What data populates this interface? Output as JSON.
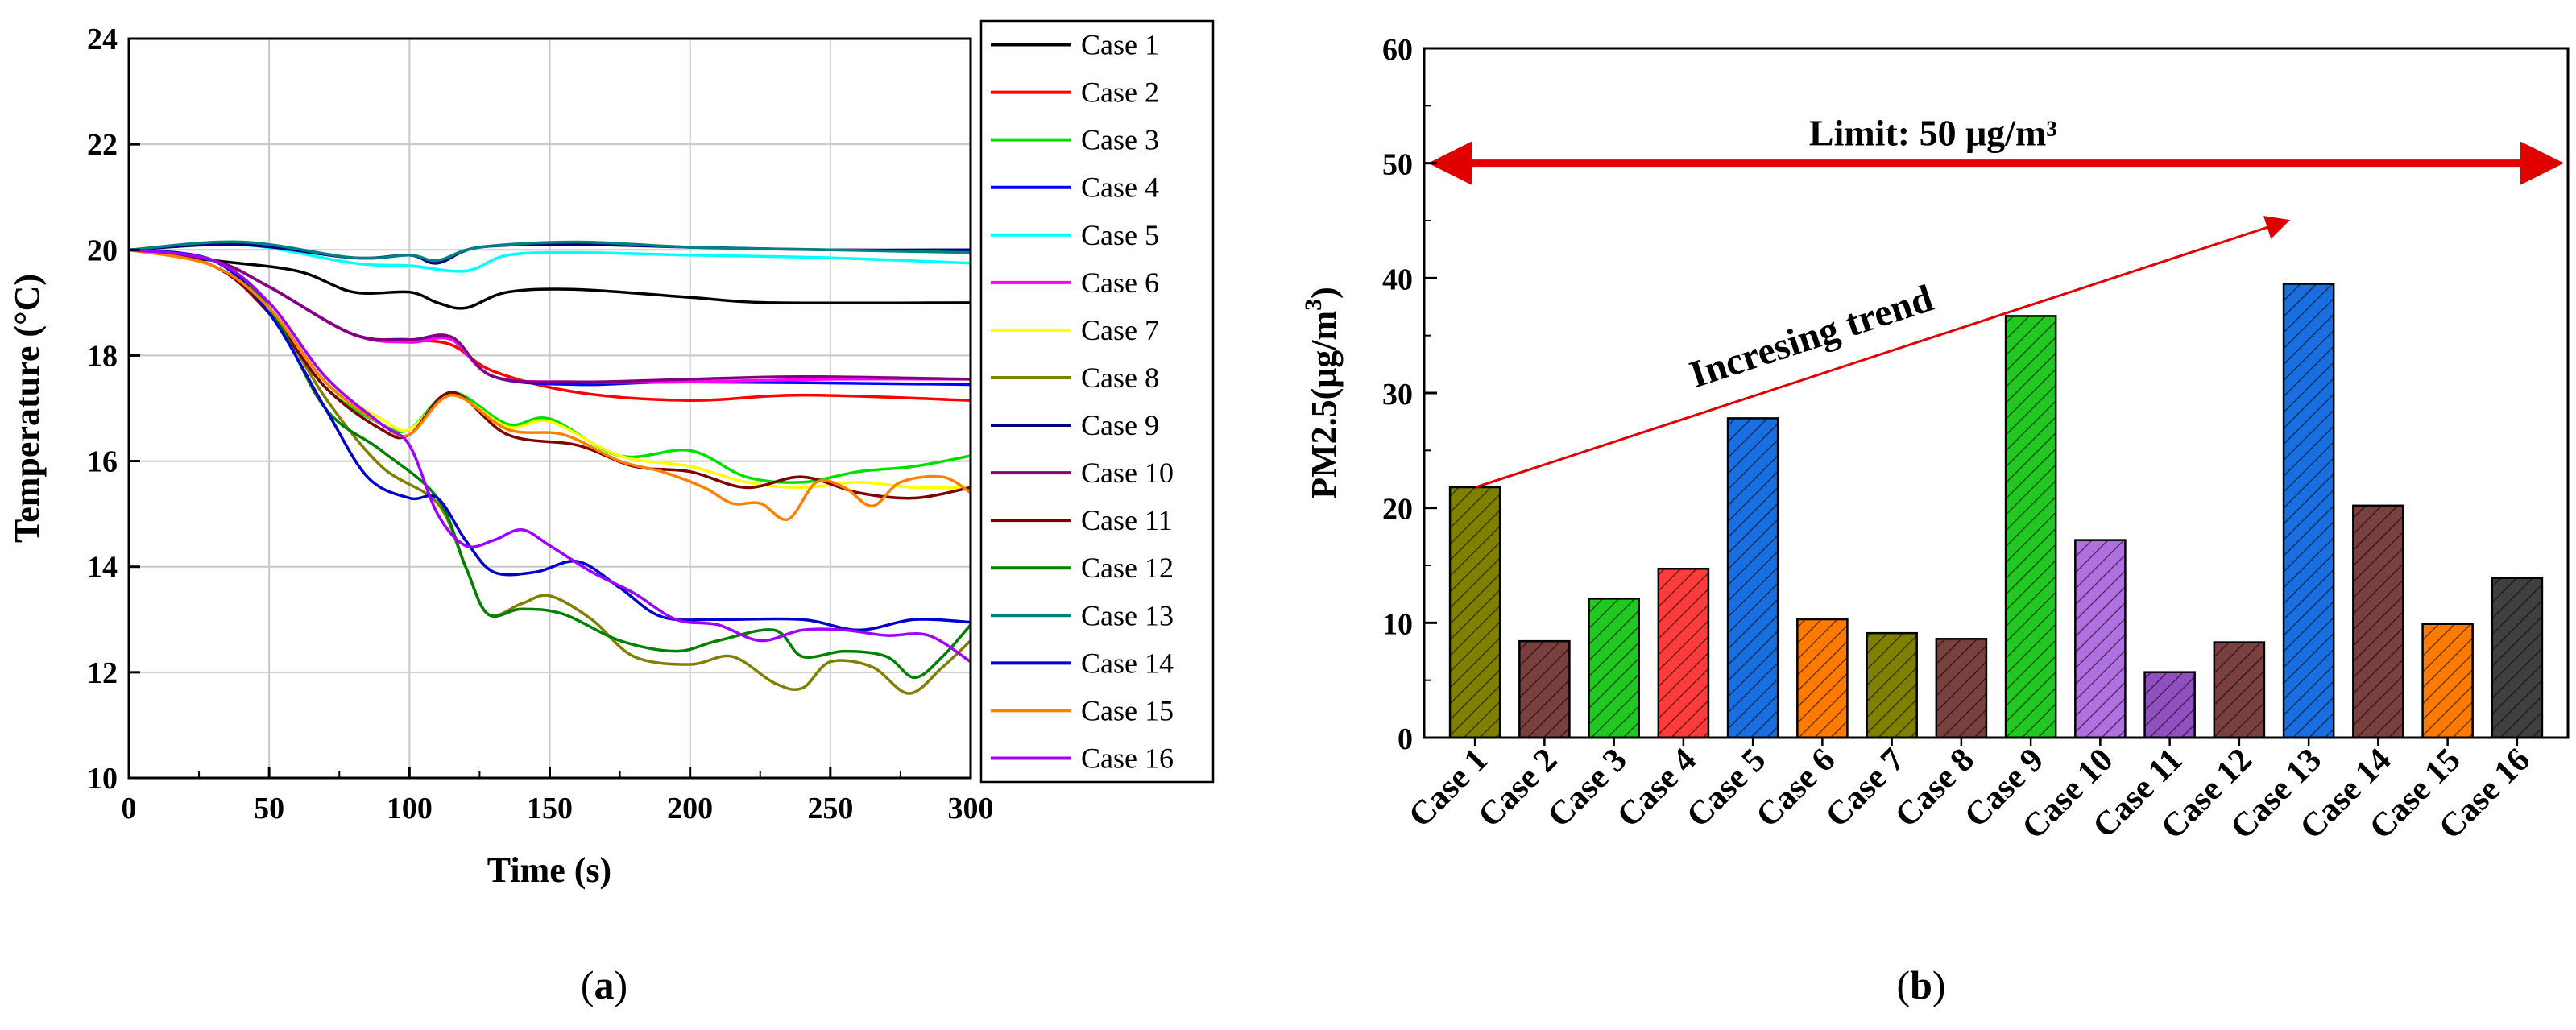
{
  "chart_data": [
    {
      "type": "line",
      "panel_label_prefix": "(",
      "panel_label_letter": "a",
      "panel_label_suffix": ")",
      "xlabel": "Time (s)",
      "ylabel": "Temperature (°C)",
      "xlim": [
        0,
        300
      ],
      "ylim": [
        10,
        24
      ],
      "xticks": [
        0,
        50,
        100,
        150,
        200,
        250,
        300
      ],
      "yticks": [
        10,
        12,
        14,
        16,
        18,
        20,
        22,
        24
      ],
      "grid": true,
      "legend_position": "outside-right",
      "series": [
        {
          "name": "Case 1",
          "color": "#000000",
          "points": [
            [
              0,
              20
            ],
            [
              30,
              19.8
            ],
            [
              60,
              19.6
            ],
            [
              80,
              19.2
            ],
            [
              100,
              19.2
            ],
            [
              110,
              19.0
            ],
            [
              120,
              18.9
            ],
            [
              135,
              19.2
            ],
            [
              160,
              19.25
            ],
            [
              200,
              19.1
            ],
            [
              230,
              19.0
            ],
            [
              300,
              19.0
            ]
          ]
        },
        {
          "name": "Case 2",
          "color": "#ff0000",
          "points": [
            [
              0,
              20
            ],
            [
              30,
              19.8
            ],
            [
              50,
              19.3
            ],
            [
              80,
              18.4
            ],
            [
              100,
              18.3
            ],
            [
              115,
              18.2
            ],
            [
              130,
              17.7
            ],
            [
              160,
              17.3
            ],
            [
              200,
              17.15
            ],
            [
              240,
              17.25
            ],
            [
              300,
              17.15
            ]
          ]
        },
        {
          "name": "Case 3",
          "color": "#00e000",
          "points": [
            [
              0,
              20
            ],
            [
              30,
              19.7
            ],
            [
              50,
              18.8
            ],
            [
              70,
              17.4
            ],
            [
              90,
              16.7
            ],
            [
              100,
              16.6
            ],
            [
              115,
              17.3
            ],
            [
              135,
              16.7
            ],
            [
              150,
              16.8
            ],
            [
              175,
              16.1
            ],
            [
              200,
              16.2
            ],
            [
              220,
              15.7
            ],
            [
              240,
              15.6
            ],
            [
              260,
              15.8
            ],
            [
              280,
              15.9
            ],
            [
              300,
              16.1
            ]
          ]
        },
        {
          "name": "Case 4",
          "color": "#0000ff",
          "points": [
            [
              0,
              20
            ],
            [
              30,
              19.8
            ],
            [
              50,
              19.3
            ],
            [
              80,
              18.4
            ],
            [
              100,
              18.3
            ],
            [
              115,
              18.3
            ],
            [
              130,
              17.6
            ],
            [
              160,
              17.45
            ],
            [
              200,
              17.5
            ],
            [
              300,
              17.45
            ]
          ]
        },
        {
          "name": "Case 5",
          "color": "#00ffff",
          "points": [
            [
              0,
              20
            ],
            [
              40,
              20.1
            ],
            [
              80,
              19.75
            ],
            [
              100,
              19.7
            ],
            [
              120,
              19.6
            ],
            [
              135,
              19.9
            ],
            [
              160,
              19.95
            ],
            [
              200,
              19.9
            ],
            [
              250,
              19.85
            ],
            [
              300,
              19.75
            ]
          ]
        },
        {
          "name": "Case 6",
          "color": "#ff00ff",
          "points": [
            [
              0,
              20
            ],
            [
              30,
              19.8
            ],
            [
              50,
              19.3
            ],
            [
              80,
              18.4
            ],
            [
              100,
              18.25
            ],
            [
              115,
              18.3
            ],
            [
              130,
              17.6
            ],
            [
              160,
              17.5
            ],
            [
              200,
              17.5
            ],
            [
              250,
              17.55
            ],
            [
              300,
              17.55
            ]
          ]
        },
        {
          "name": "Case 7",
          "color": "#ffff00",
          "points": [
            [
              0,
              20
            ],
            [
              30,
              19.7
            ],
            [
              50,
              18.9
            ],
            [
              70,
              17.5
            ],
            [
              90,
              16.8
            ],
            [
              100,
              16.6
            ],
            [
              115,
              17.25
            ],
            [
              135,
              16.65
            ],
            [
              150,
              16.75
            ],
            [
              175,
              16.1
            ],
            [
              200,
              15.9
            ],
            [
              220,
              15.6
            ],
            [
              240,
              15.5
            ],
            [
              260,
              15.6
            ],
            [
              280,
              15.5
            ],
            [
              300,
              15.5
            ]
          ]
        },
        {
          "name": "Case 8",
          "color": "#808000",
          "points": [
            [
              0,
              20
            ],
            [
              30,
              19.8
            ],
            [
              50,
              18.9
            ],
            [
              70,
              17.2
            ],
            [
              90,
              15.9
            ],
            [
              110,
              15.2
            ],
            [
              120,
              14.0
            ],
            [
              128,
              13.1
            ],
            [
              140,
              13.3
            ],
            [
              150,
              13.45
            ],
            [
              165,
              13.0
            ],
            [
              180,
              12.3
            ],
            [
              200,
              12.15
            ],
            [
              215,
              12.3
            ],
            [
              230,
              11.8
            ],
            [
              240,
              11.7
            ],
            [
              250,
              12.2
            ],
            [
              265,
              12.1
            ],
            [
              278,
              11.6
            ],
            [
              290,
              12.1
            ],
            [
              300,
              12.6
            ]
          ]
        },
        {
          "name": "Case 9",
          "color": "#000080",
          "points": [
            [
              0,
              20
            ],
            [
              40,
              20.1
            ],
            [
              80,
              19.85
            ],
            [
              100,
              19.9
            ],
            [
              110,
              19.75
            ],
            [
              125,
              20.05
            ],
            [
              160,
              20.1
            ],
            [
              200,
              20.05
            ],
            [
              250,
              20.0
            ],
            [
              300,
              20.0
            ]
          ]
        },
        {
          "name": "Case 10",
          "color": "#800080",
          "points": [
            [
              0,
              20
            ],
            [
              30,
              19.8
            ],
            [
              50,
              19.3
            ],
            [
              80,
              18.4
            ],
            [
              100,
              18.3
            ],
            [
              115,
              18.35
            ],
            [
              130,
              17.6
            ],
            [
              160,
              17.5
            ],
            [
              200,
              17.55
            ],
            [
              240,
              17.6
            ],
            [
              300,
              17.55
            ]
          ]
        },
        {
          "name": "Case 11",
          "color": "#800000",
          "points": [
            [
              0,
              20
            ],
            [
              30,
              19.7
            ],
            [
              50,
              18.8
            ],
            [
              70,
              17.4
            ],
            [
              90,
              16.6
            ],
            [
              100,
              16.5
            ],
            [
              115,
              17.3
            ],
            [
              135,
              16.5
            ],
            [
              160,
              16.3
            ],
            [
              180,
              15.9
            ],
            [
              200,
              15.8
            ],
            [
              220,
              15.5
            ],
            [
              240,
              15.7
            ],
            [
              260,
              15.4
            ],
            [
              280,
              15.3
            ],
            [
              300,
              15.5
            ]
          ]
        },
        {
          "name": "Case 12",
          "color": "#008000",
          "points": [
            [
              0,
              20
            ],
            [
              30,
              19.8
            ],
            [
              50,
              18.9
            ],
            [
              70,
              17.0
            ],
            [
              90,
              16.2
            ],
            [
              110,
              15.3
            ],
            [
              120,
              14.0
            ],
            [
              128,
              13.1
            ],
            [
              140,
              13.2
            ],
            [
              155,
              13.1
            ],
            [
              175,
              12.6
            ],
            [
              195,
              12.4
            ],
            [
              210,
              12.6
            ],
            [
              230,
              12.8
            ],
            [
              240,
              12.3
            ],
            [
              255,
              12.4
            ],
            [
              270,
              12.3
            ],
            [
              280,
              11.9
            ],
            [
              290,
              12.3
            ],
            [
              300,
              12.9
            ]
          ]
        },
        {
          "name": "Case 13",
          "color": "#008080",
          "points": [
            [
              0,
              20
            ],
            [
              40,
              20.15
            ],
            [
              80,
              19.85
            ],
            [
              100,
              19.9
            ],
            [
              110,
              19.8
            ],
            [
              125,
              20.05
            ],
            [
              160,
              20.15
            ],
            [
              200,
              20.05
            ],
            [
              250,
              20.0
            ],
            [
              300,
              19.95
            ]
          ]
        },
        {
          "name": "Case 14",
          "color": "#0000cc",
          "points": [
            [
              0,
              20
            ],
            [
              30,
              19.8
            ],
            [
              50,
              18.8
            ],
            [
              70,
              17.0
            ],
            [
              85,
              15.7
            ],
            [
              100,
              15.3
            ],
            [
              110,
              15.3
            ],
            [
              120,
              14.5
            ],
            [
              130,
              13.9
            ],
            [
              145,
              13.9
            ],
            [
              160,
              14.1
            ],
            [
              175,
              13.6
            ],
            [
              190,
              13.05
            ],
            [
              210,
              13.0
            ],
            [
              240,
              13.0
            ],
            [
              260,
              12.8
            ],
            [
              280,
              13.0
            ],
            [
              300,
              12.95
            ]
          ]
        },
        {
          "name": "Case 15",
          "color": "#ff8000",
          "points": [
            [
              0,
              20
            ],
            [
              30,
              19.7
            ],
            [
              50,
              18.9
            ],
            [
              70,
              17.5
            ],
            [
              90,
              16.7
            ],
            [
              100,
              16.5
            ],
            [
              115,
              17.25
            ],
            [
              135,
              16.6
            ],
            [
              155,
              16.5
            ],
            [
              175,
              16.0
            ],
            [
              190,
              15.8
            ],
            [
              205,
              15.5
            ],
            [
              215,
              15.2
            ],
            [
              225,
              15.2
            ],
            [
              235,
              14.9
            ],
            [
              245,
              15.6
            ],
            [
              255,
              15.5
            ],
            [
              265,
              15.15
            ],
            [
              275,
              15.6
            ],
            [
              290,
              15.7
            ],
            [
              300,
              15.4
            ]
          ]
        },
        {
          "name": "Case 16",
          "color": "#a000ff",
          "points": [
            [
              0,
              20
            ],
            [
              30,
              19.8
            ],
            [
              50,
              19.0
            ],
            [
              70,
              17.6
            ],
            [
              90,
              16.7
            ],
            [
              100,
              16.3
            ],
            [
              110,
              15.0
            ],
            [
              120,
              14.4
            ],
            [
              130,
              14.5
            ],
            [
              140,
              14.7
            ],
            [
              150,
              14.4
            ],
            [
              165,
              13.9
            ],
            [
              180,
              13.5
            ],
            [
              195,
              13.0
            ],
            [
              210,
              12.9
            ],
            [
              225,
              12.6
            ],
            [
              240,
              12.8
            ],
            [
              255,
              12.8
            ],
            [
              270,
              12.7
            ],
            [
              285,
              12.7
            ],
            [
              300,
              12.2
            ]
          ]
        }
      ]
    },
    {
      "type": "bar",
      "panel_label_prefix": "(",
      "panel_label_letter": "b",
      "panel_label_suffix": ")",
      "ylabel_main": "PM2.5(μg/m",
      "ylabel_sup": "3",
      "ylabel_close": ")",
      "xlabel": "",
      "ylim": [
        0,
        60
      ],
      "yticks": [
        0,
        10,
        20,
        30,
        40,
        50,
        60
      ],
      "grid": false,
      "categories": [
        "Case 1",
        "Case 2",
        "Case 3",
        "Case 4",
        "Case 5",
        "Case 6",
        "Case 7",
        "Case 8",
        "Case 9",
        "Case 10",
        "Case 11",
        "Case 12",
        "Case 13",
        "Case 14",
        "Case 15",
        "Case 16"
      ],
      "values": [
        21.8,
        8.4,
        12.1,
        14.7,
        27.8,
        10.3,
        9.1,
        8.6,
        36.7,
        17.2,
        5.7,
        8.3,
        39.5,
        20.2,
        9.9,
        13.9
      ],
      "colors": [
        "#808000",
        "#7a3f3f",
        "#22c722",
        "#ff3b3b",
        "#1a6fe0",
        "#ff7a00",
        "#808000",
        "#7a3f3f",
        "#22c722",
        "#b070e0",
        "#9050c0",
        "#7a3f3f",
        "#1a6fe0",
        "#7a3f3f",
        "#ff7a00",
        "#404040"
      ],
      "limit": {
        "value": 50,
        "label": "Limit: 50 μg/m³",
        "color": "#e00000"
      },
      "trend": {
        "label": "Incresing trend",
        "from": {
          "category_index": 0,
          "value": 21.8
        },
        "to": {
          "category_index": 11.7,
          "value": 45
        },
        "color": "#e00000"
      }
    }
  ]
}
